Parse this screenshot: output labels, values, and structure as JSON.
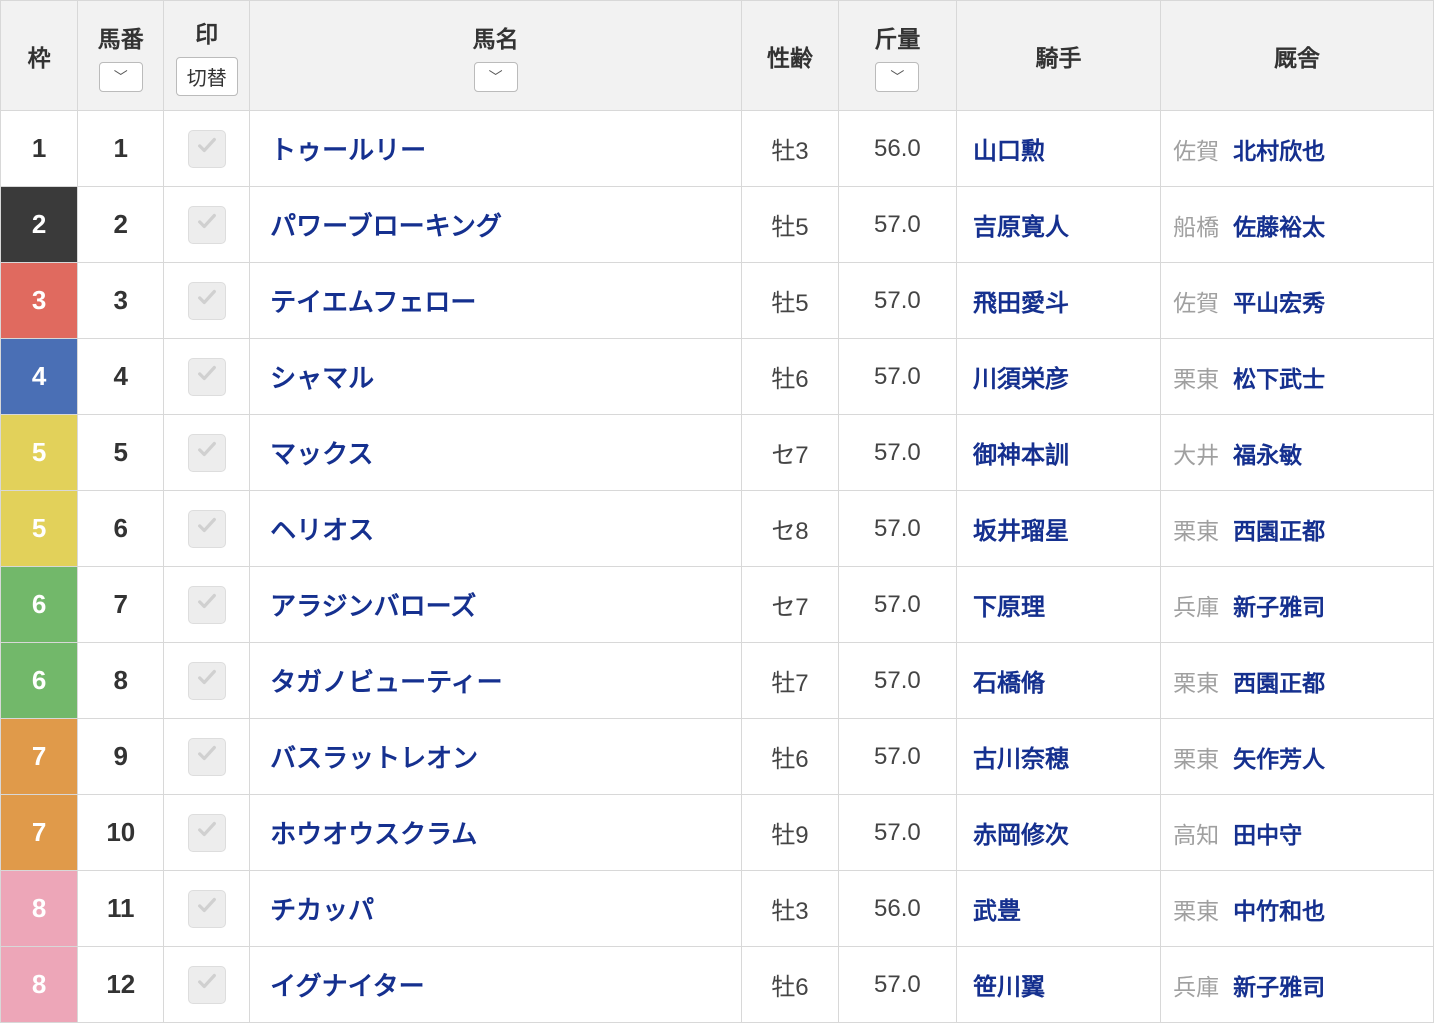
{
  "columns": {
    "waku": "枠",
    "uma": "馬番",
    "mark": "印",
    "mark_toggle": "切替",
    "name": "馬名",
    "sexage": "性齢",
    "weight": "斤量",
    "jockey": "騎手",
    "stable": "厩舎"
  },
  "waku_colors": {
    "1": {
      "bg": "#ffffff",
      "fg": "#333333"
    },
    "2": {
      "bg": "#3a3a3a",
      "fg": "#ffffff"
    },
    "3": {
      "bg": "#e06a5f",
      "fg": "#ffffff"
    },
    "4": {
      "bg": "#4a6fb5",
      "fg": "#ffffff"
    },
    "5": {
      "bg": "#e2d15a",
      "fg": "#ffffff"
    },
    "6": {
      "bg": "#72b86a",
      "fg": "#ffffff"
    },
    "7": {
      "bg": "#e09a4a",
      "fg": "#ffffff"
    },
    "8": {
      "bg": "#eda6b8",
      "fg": "#ffffff"
    }
  },
  "rows": [
    {
      "waku": "1",
      "uma": "1",
      "name": "トゥールリー",
      "sexage": "牡3",
      "weight": "56.0",
      "jockey": "山口勲",
      "loc": "佐賀",
      "trainer": "北村欣也"
    },
    {
      "waku": "2",
      "uma": "2",
      "name": "パワーブローキング",
      "sexage": "牡5",
      "weight": "57.0",
      "jockey": "吉原寛人",
      "loc": "船橋",
      "trainer": "佐藤裕太"
    },
    {
      "waku": "3",
      "uma": "3",
      "name": "テイエムフェロー",
      "sexage": "牡5",
      "weight": "57.0",
      "jockey": "飛田愛斗",
      "loc": "佐賀",
      "trainer": "平山宏秀"
    },
    {
      "waku": "4",
      "uma": "4",
      "name": "シャマル",
      "sexage": "牡6",
      "weight": "57.0",
      "jockey": "川須栄彦",
      "loc": "栗東",
      "trainer": "松下武士"
    },
    {
      "waku": "5",
      "uma": "5",
      "name": "マックス",
      "sexage": "セ7",
      "weight": "57.0",
      "jockey": "御神本訓",
      "loc": "大井",
      "trainer": "福永敏"
    },
    {
      "waku": "5",
      "uma": "6",
      "name": "ヘリオス",
      "sexage": "セ8",
      "weight": "57.0",
      "jockey": "坂井瑠星",
      "loc": "栗東",
      "trainer": "西園正都"
    },
    {
      "waku": "6",
      "uma": "7",
      "name": "アラジンバローズ",
      "sexage": "セ7",
      "weight": "57.0",
      "jockey": "下原理",
      "loc": "兵庫",
      "trainer": "新子雅司"
    },
    {
      "waku": "6",
      "uma": "8",
      "name": "タガノビューティー",
      "sexage": "牡7",
      "weight": "57.0",
      "jockey": "石橋脩",
      "loc": "栗東",
      "trainer": "西園正都"
    },
    {
      "waku": "7",
      "uma": "9",
      "name": "バスラットレオン",
      "sexage": "牡6",
      "weight": "57.0",
      "jockey": "古川奈穂",
      "loc": "栗東",
      "trainer": "矢作芳人"
    },
    {
      "waku": "7",
      "uma": "10",
      "name": "ホウオウスクラム",
      "sexage": "牡9",
      "weight": "57.0",
      "jockey": "赤岡修次",
      "loc": "高知",
      "trainer": "田中守"
    },
    {
      "waku": "8",
      "uma": "11",
      "name": "チカッパ",
      "sexage": "牡3",
      "weight": "56.0",
      "jockey": "武豊",
      "loc": "栗東",
      "trainer": "中竹和也"
    },
    {
      "waku": "8",
      "uma": "12",
      "name": "イグナイター",
      "sexage": "牡6",
      "weight": "57.0",
      "jockey": "笹川翼",
      "loc": "兵庫",
      "trainer": "新子雅司"
    }
  ]
}
